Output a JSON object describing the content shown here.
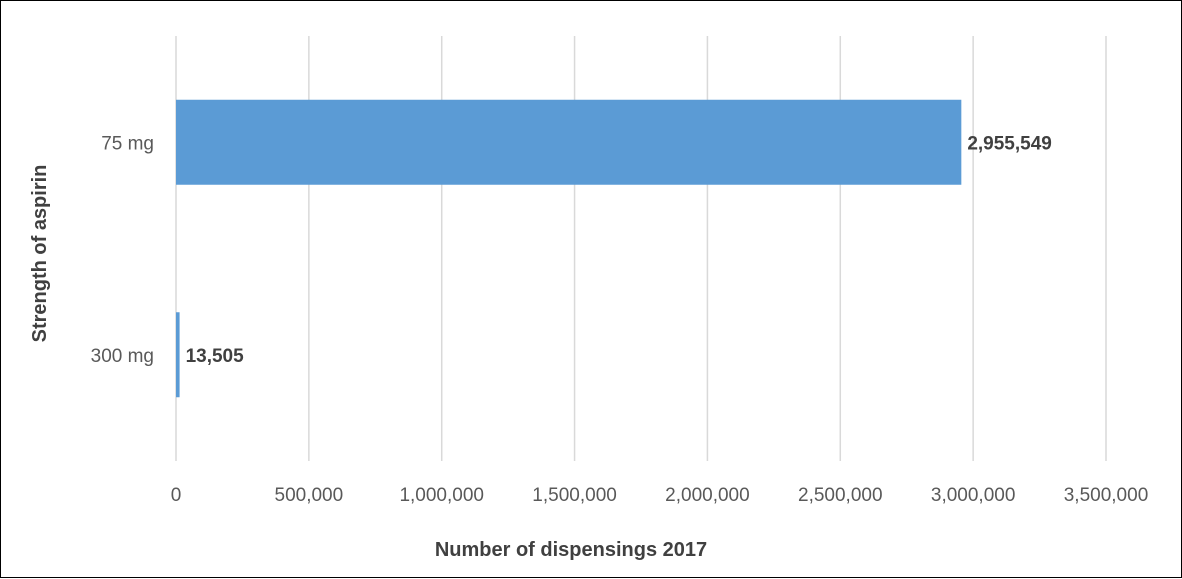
{
  "chart_data": {
    "type": "bar",
    "orientation": "horizontal",
    "categories": [
      "75 mg",
      "300 mg"
    ],
    "values": [
      2955549,
      13505
    ],
    "data_labels": [
      "2,955,549",
      "13,505"
    ],
    "xlabel": "Number of dispensings 2017",
    "ylabel": "Strength of aspirin",
    "xlim": [
      0,
      3500000
    ],
    "xticks": [
      0,
      500000,
      1000000,
      1500000,
      2000000,
      2500000,
      3000000,
      3500000
    ],
    "xtick_labels": [
      "0",
      "500,000",
      "1,000,000",
      "1,500,000",
      "2,000,000",
      "2,500,000",
      "3,000,000",
      "3,500,000"
    ],
    "grid": "vertical",
    "legend": "none",
    "bar_color": "#5b9bd5",
    "grid_color": "#d9d9d9"
  }
}
